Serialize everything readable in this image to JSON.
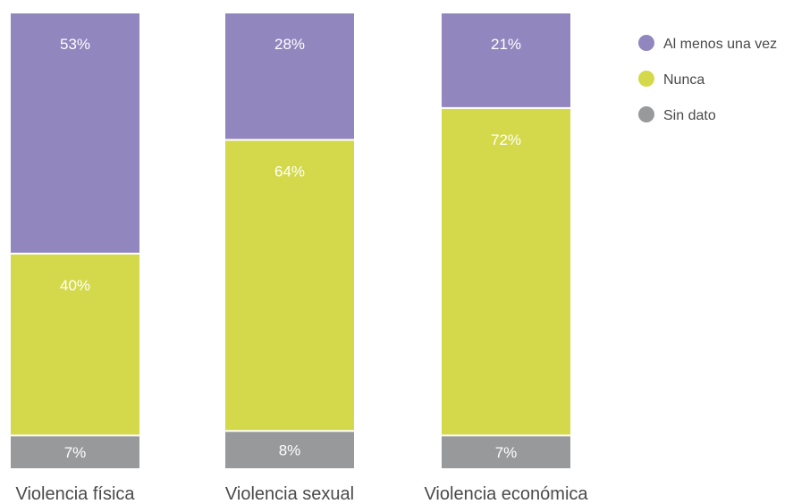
{
  "chart_data": {
    "type": "bar",
    "stacked": true,
    "normalized": true,
    "categories": [
      "Violencia física",
      "Violencia sexual",
      "Violencia económica"
    ],
    "series": [
      {
        "name": "Al menos una vez",
        "values": [
          53,
          28,
          21
        ],
        "labels": [
          "53%",
          "28%",
          "21%"
        ],
        "color": "#9286be"
      },
      {
        "name": "Nunca",
        "values": [
          40,
          64,
          72
        ],
        "labels": [
          "40%",
          "64%",
          "72%"
        ],
        "color": "#d4d94b"
      },
      {
        "name": "Sin dato",
        "values": [
          7,
          8,
          7
        ],
        "labels": [
          "7%",
          "8%",
          "7%"
        ],
        "color": "#98999b"
      }
    ],
    "ylim": [
      0,
      100
    ],
    "grid": false,
    "legend": "top-right"
  }
}
